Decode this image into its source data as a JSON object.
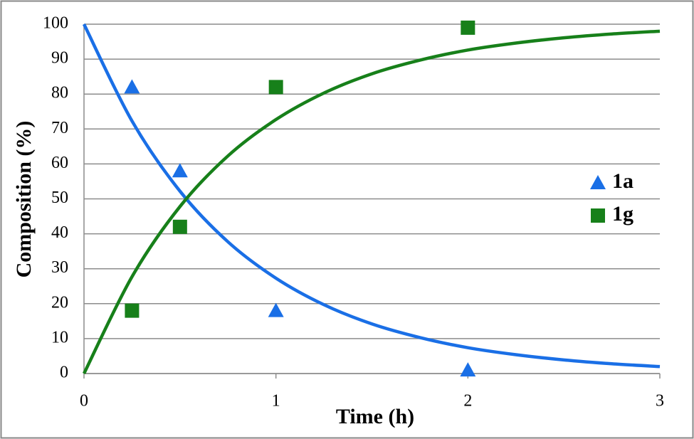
{
  "chart_data": {
    "type": "scatter",
    "x_label": "Time (h)",
    "y_label": "Composition (%)",
    "xlim": [
      0,
      3
    ],
    "xticks": [
      0,
      1,
      2,
      3
    ],
    "ylim": [
      0,
      100
    ],
    "yticks": [
      0,
      10,
      20,
      30,
      40,
      50,
      60,
      70,
      80,
      90,
      100
    ],
    "grid": true,
    "legend": "right",
    "series": [
      {
        "name": "1a",
        "color": "#1a6fe6",
        "marker": "triangle",
        "x": [
          0.25,
          0.5,
          1,
          2
        ],
        "values": [
          82,
          58,
          18,
          1
        ]
      },
      {
        "name": "1g",
        "color": "#17801a",
        "marker": "square",
        "x": [
          0.25,
          0.5,
          1,
          2
        ],
        "values": [
          18,
          42,
          82,
          99
        ]
      }
    ],
    "fits": [
      {
        "color": "#1a6fe6",
        "x": [
          0,
          0.25,
          0.5,
          0.75,
          1,
          1.25,
          1.5,
          1.75,
          2,
          2.25,
          2.5,
          2.75,
          3
        ],
        "values": [
          100,
          72.3,
          52.2,
          37.7,
          27.3,
          19.7,
          14.2,
          10.3,
          7.4,
          5.4,
          3.9,
          2.8,
          2.0
        ]
      },
      {
        "color": "#17801a",
        "x": [
          0,
          0.25,
          0.5,
          0.75,
          1,
          1.25,
          1.5,
          1.75,
          2,
          2.25,
          2.5,
          2.75,
          3
        ],
        "values": [
          0,
          27.7,
          47.8,
          62.3,
          72.7,
          80.3,
          85.8,
          89.7,
          92.6,
          94.6,
          96.1,
          97.2,
          98.0
        ]
      }
    ]
  }
}
